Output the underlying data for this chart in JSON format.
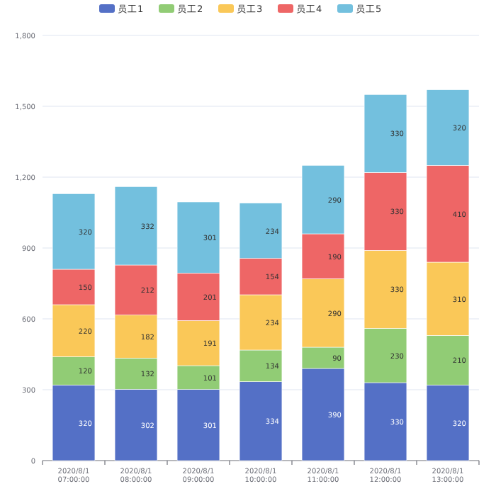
{
  "chart_data": {
    "type": "bar",
    "stacked": true,
    "categories": [
      "2020/8/1 07:00:00",
      "2020/8/1 08:00:00",
      "2020/8/1 09:00:00",
      "2020/8/1 10:00:00",
      "2020/8/1 11:00:00",
      "2020/8/1 12:00:00",
      "2020/8/1 13:00:00"
    ],
    "series": [
      {
        "name": "员工1",
        "color": "#5470c6",
        "values": [
          320,
          302,
          301,
          334,
          390,
          330,
          320
        ]
      },
      {
        "name": "员工2",
        "color": "#91cc75",
        "values": [
          120,
          132,
          101,
          134,
          90,
          230,
          210
        ]
      },
      {
        "name": "员工3",
        "color": "#fac858",
        "values": [
          220,
          182,
          191,
          234,
          290,
          330,
          310
        ]
      },
      {
        "name": "员工4",
        "color": "#ee6666",
        "values": [
          150,
          212,
          201,
          154,
          190,
          330,
          410
        ]
      },
      {
        "name": "员工5",
        "color": "#73c0de",
        "values": [
          320,
          332,
          301,
          234,
          290,
          330,
          320
        ]
      }
    ],
    "ylim": [
      0,
      1800
    ],
    "yticks": [
      {
        "value": 0,
        "label": "0"
      },
      {
        "value": 300,
        "label": "300"
      },
      {
        "value": 600,
        "label": "600"
      },
      {
        "value": 900,
        "label": "900"
      },
      {
        "value": 1200,
        "label": "1,200"
      },
      {
        "value": 1500,
        "label": "1,500"
      },
      {
        "value": 1800,
        "label": "1,800"
      }
    ],
    "grid": "y",
    "legend": "top",
    "data_labels": true
  }
}
